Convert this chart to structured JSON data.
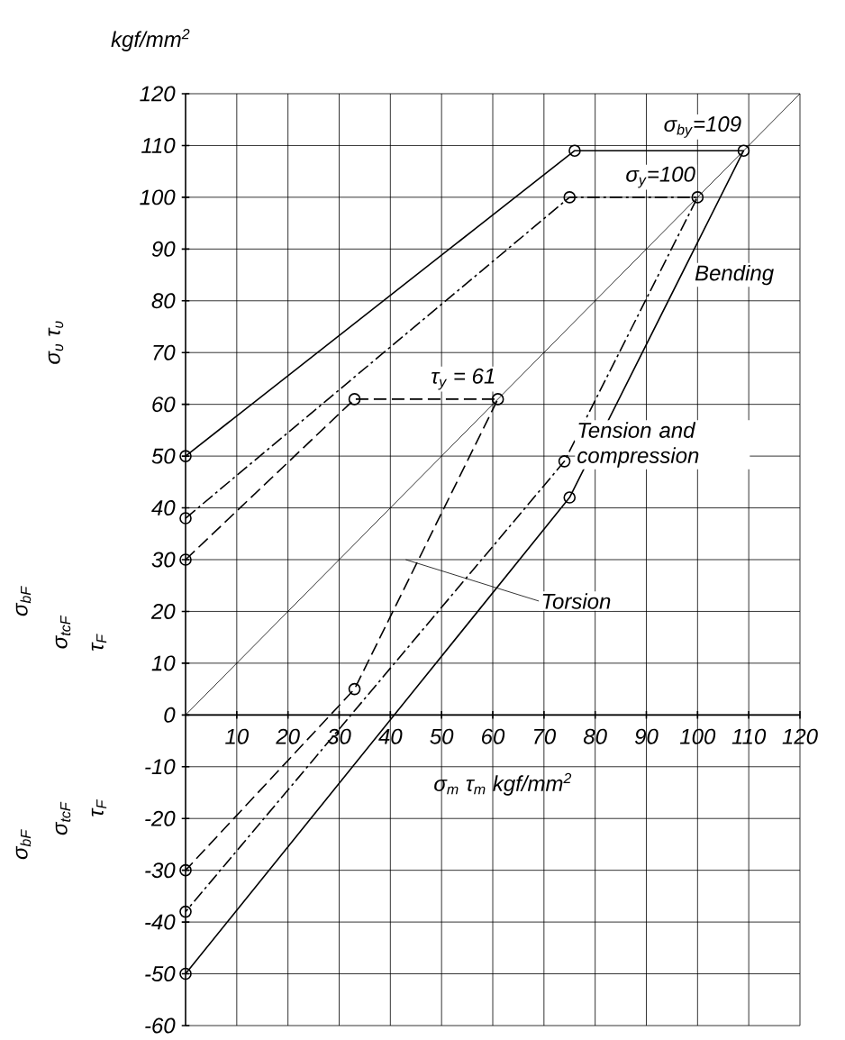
{
  "chart_data": {
    "type": "line",
    "xlabel": "σ$_{m}$ τ$_{m}$ kgf/mm$^{2}$",
    "ylabel": "σ$_{υ}$ τ$_{υ}$",
    "xlim": [
      0,
      120
    ],
    "ylim": [
      -60,
      120
    ],
    "xticks": [
      10,
      20,
      30,
      40,
      50,
      60,
      70,
      80,
      90,
      100,
      110,
      120
    ],
    "yticks": [
      -60,
      -50,
      -40,
      -30,
      -20,
      -10,
      0,
      10,
      20,
      30,
      40,
      50,
      60,
      70,
      80,
      90,
      100,
      110,
      120
    ],
    "grid": true,
    "series": [
      {
        "name": "Bending",
        "color": "#000000",
        "line_style": "solid",
        "marker": "circle",
        "x": [
          0,
          76,
          109,
          75,
          0
        ],
        "values": [
          50,
          109,
          109,
          42,
          -50
        ]
      },
      {
        "name": "Tension and compression",
        "color": "#000000",
        "line_style": "dashdot",
        "marker": "circle",
        "x": [
          0,
          75,
          100,
          74,
          0
        ],
        "values": [
          38,
          100,
          100,
          49,
          -38
        ]
      },
      {
        "name": "Torsion",
        "color": "#000000",
        "line_style": "dashed",
        "marker": "circle",
        "x": [
          0,
          33,
          61,
          33,
          0
        ],
        "values": [
          30,
          61,
          61,
          5,
          -30
        ]
      },
      {
        "color": "#000000",
        "line_style": "solid",
        "marker": "none",
        "x": [
          0,
          120
        ],
        "values": [
          0,
          120
        ]
      }
    ],
    "annotations": [
      {
        "text": "σ$_{by}$=109",
        "x": 109,
        "y": 109
      },
      {
        "text": "σ$_{y}$=100",
        "x": 100,
        "y": 100
      },
      {
        "text": "τ$_{y}$ = 61",
        "x": 61,
        "y": 61
      },
      "kgf/mm$^{2}$",
      "σ$_{bF}$",
      "σ$_{tcF}$",
      "τ$_{F}$",
      "σ$_{bF}$",
      "σ$_{tcF}$",
      "τ$_{F}$"
    ]
  }
}
